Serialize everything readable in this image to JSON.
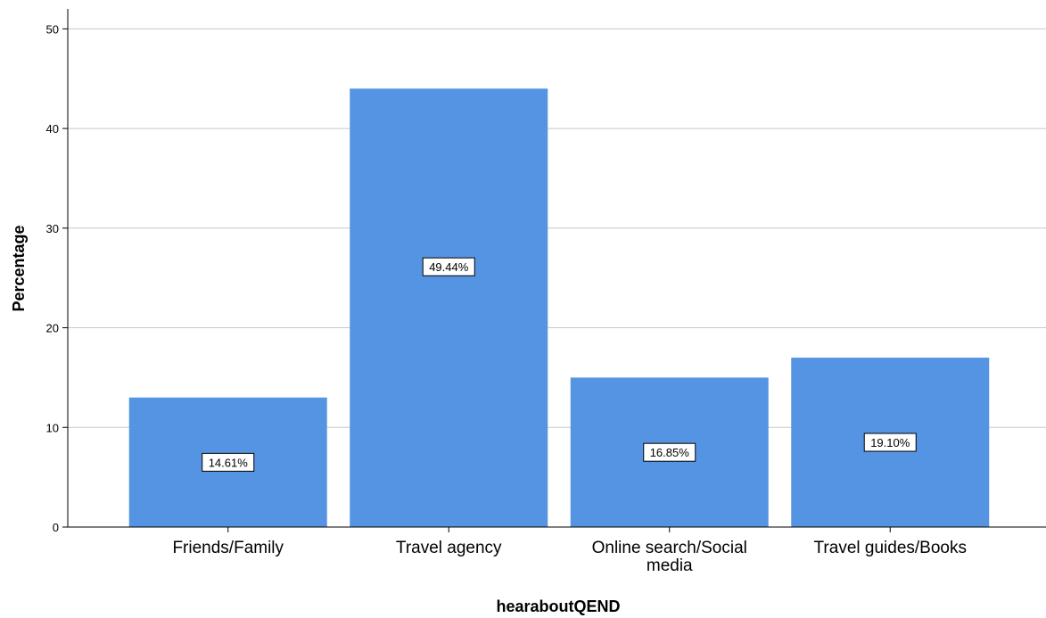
{
  "chart_data": {
    "type": "bar",
    "categories": [
      "Friends/Family",
      "Travel agency",
      "Online search/Social media",
      "Travel guides/Books"
    ],
    "category_label_lines": [
      [
        "Friends/Family"
      ],
      [
        "Travel agency"
      ],
      [
        "Online search/Social",
        "media"
      ],
      [
        "Travel guides/Books"
      ]
    ],
    "values": [
      13,
      44,
      15,
      17
    ],
    "data_labels": [
      "14.61%",
      "49.44%",
      "16.85%",
      "19.10%"
    ],
    "xlabel": "hearaboutQEND",
    "ylabel": "Percentage",
    "ylim": [
      0,
      52
    ],
    "yticks": [
      0,
      10,
      20,
      30,
      40,
      50
    ],
    "grid": true,
    "bar_color": "#5594e2"
  }
}
